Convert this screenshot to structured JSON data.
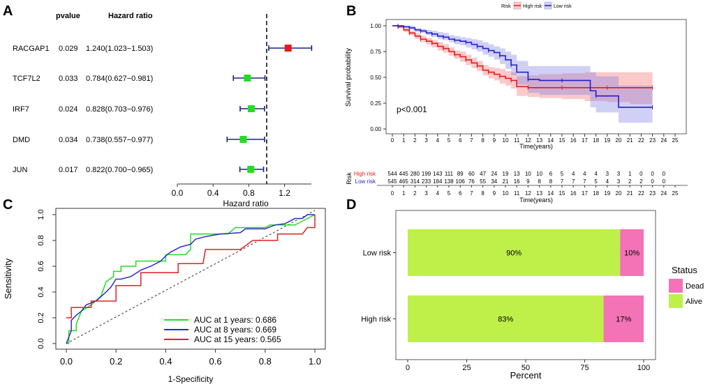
{
  "panel_labels": [
    "A",
    "B",
    "C",
    "D"
  ],
  "chart_data": [
    {
      "panel": "A",
      "type": "forest",
      "headers": {
        "pvalue": "pvalue",
        "hr": "Hazard ratio"
      },
      "xlabel": "Hazard ratio",
      "xlim": [
        0,
        1.5
      ],
      "xticks": [
        "0.0",
        "0.4",
        "0.8",
        "1.2"
      ],
      "reference_line": 1,
      "rows": [
        {
          "gene": "RACGAP1",
          "pvalue": "0.029",
          "hr_text": "1.240(1.023−1.503)",
          "hr": 1.24,
          "lo": 1.023,
          "hi": 1.503,
          "color": "#e41a1c"
        },
        {
          "gene": "TCF7L2",
          "pvalue": "0.033",
          "hr_text": "0.784(0.627−0.981)",
          "hr": 0.784,
          "lo": 0.627,
          "hi": 0.981,
          "color": "#22dd22"
        },
        {
          "gene": "IRF7",
          "pvalue": "0.024",
          "hr_text": "0.828(0.703−0.976)",
          "hr": 0.828,
          "lo": 0.703,
          "hi": 0.976,
          "color": "#22dd22"
        },
        {
          "gene": "DMD",
          "pvalue": "0.034",
          "hr_text": "0.738(0.557−0.977)",
          "hr": 0.738,
          "lo": 0.557,
          "hi": 0.977,
          "color": "#22dd22"
        },
        {
          "gene": "JUN",
          "pvalue": "0.017",
          "hr_text": "0.822(0.700−0.965)",
          "hr": 0.822,
          "lo": 0.7,
          "hi": 0.965,
          "color": "#22dd22"
        }
      ]
    },
    {
      "panel": "B",
      "type": "line",
      "subtype": "kaplan-meier",
      "legend": {
        "title": "Risk",
        "entries": [
          {
            "name": "High risk",
            "color": "#e41a1c"
          },
          {
            "name": "Low risk",
            "color": "#1f1fcc"
          }
        ]
      },
      "ylabel": "Survival probability",
      "xlabel": "Time(years)",
      "ylim": [
        0,
        1
      ],
      "yticks": [
        "0.00",
        "0.25",
        "0.50",
        "0.75",
        "1.00"
      ],
      "xlim": [
        0,
        25
      ],
      "xticks": [
        "0",
        "1",
        "2",
        "3",
        "4",
        "5",
        "6",
        "7",
        "8",
        "9",
        "10",
        "11",
        "12",
        "13",
        "14",
        "15",
        "16",
        "17",
        "18",
        "19",
        "20",
        "21",
        "22",
        "23",
        "24",
        "25"
      ],
      "annotation": "p<0.001",
      "series": [
        {
          "name": "High risk",
          "color": "#e41a1c",
          "x": [
            0,
            0.5,
            1,
            1.5,
            2,
            2.5,
            3,
            3.5,
            4,
            4.5,
            5,
            5.5,
            6,
            6.5,
            7,
            7.5,
            8,
            8.5,
            9,
            9.5,
            10,
            10.5,
            11,
            12,
            13,
            15,
            17,
            19,
            21,
            23
          ],
          "y": [
            1.0,
            0.99,
            0.96,
            0.93,
            0.9,
            0.87,
            0.85,
            0.83,
            0.8,
            0.78,
            0.75,
            0.72,
            0.7,
            0.67,
            0.64,
            0.61,
            0.57,
            0.55,
            0.53,
            0.51,
            0.49,
            0.47,
            0.41,
            0.4,
            0.4,
            0.4,
            0.4,
            0.4,
            0.4,
            0.4
          ],
          "lower": [
            1.0,
            0.98,
            0.94,
            0.91,
            0.87,
            0.84,
            0.82,
            0.79,
            0.76,
            0.74,
            0.71,
            0.68,
            0.65,
            0.62,
            0.59,
            0.56,
            0.52,
            0.49,
            0.47,
            0.44,
            0.42,
            0.39,
            0.32,
            0.31,
            0.3,
            0.29,
            0.27,
            0.26,
            0.24,
            0.23
          ],
          "upper": [
            1.0,
            1.0,
            0.98,
            0.95,
            0.93,
            0.9,
            0.88,
            0.86,
            0.84,
            0.82,
            0.79,
            0.76,
            0.75,
            0.72,
            0.69,
            0.66,
            0.62,
            0.6,
            0.59,
            0.58,
            0.56,
            0.55,
            0.51,
            0.52,
            0.53,
            0.54,
            0.55,
            0.55,
            0.55,
            0.55
          ]
        },
        {
          "name": "Low risk",
          "color": "#1f1fcc",
          "x": [
            0,
            0.5,
            1,
            1.5,
            2,
            2.5,
            3,
            3.5,
            4,
            4.5,
            5,
            5.5,
            6,
            6.5,
            7,
            7.5,
            8,
            8.5,
            9,
            9.5,
            10,
            10.5,
            11,
            12,
            13,
            15,
            17.5,
            18,
            20,
            23
          ],
          "y": [
            1.0,
            1.0,
            0.99,
            0.98,
            0.96,
            0.95,
            0.93,
            0.92,
            0.9,
            0.89,
            0.87,
            0.86,
            0.85,
            0.84,
            0.82,
            0.8,
            0.78,
            0.76,
            0.74,
            0.71,
            0.67,
            0.62,
            0.55,
            0.48,
            0.47,
            0.47,
            0.37,
            0.32,
            0.21,
            0.21
          ],
          "lower": [
            1.0,
            0.99,
            0.98,
            0.96,
            0.94,
            0.93,
            0.91,
            0.89,
            0.87,
            0.86,
            0.84,
            0.82,
            0.81,
            0.79,
            0.77,
            0.75,
            0.72,
            0.7,
            0.67,
            0.63,
            0.58,
            0.52,
            0.43,
            0.35,
            0.33,
            0.33,
            0.21,
            0.16,
            0.06,
            0.06
          ],
          "upper": [
            1.0,
            1.0,
            1.0,
            1.0,
            0.98,
            0.97,
            0.96,
            0.95,
            0.94,
            0.93,
            0.91,
            0.9,
            0.89,
            0.88,
            0.87,
            0.86,
            0.84,
            0.82,
            0.8,
            0.78,
            0.75,
            0.72,
            0.66,
            0.61,
            0.61,
            0.61,
            0.55,
            0.51,
            0.42,
            0.42
          ]
        }
      ],
      "risk_table": {
        "title": "Risk",
        "xlabel": "Time(years)",
        "rows": [
          {
            "name": "High risk",
            "color": "#e41a1c",
            "counts": [
              "544",
              "445",
              "280",
              "199",
              "143",
              "111",
              "89",
              "60",
              "47",
              "24",
              "19",
              "13",
              "10",
              "10",
              "6",
              "5",
              "4",
              "4",
              "4",
              "3",
              "3",
              "1",
              "0",
              "0",
              "0"
            ]
          },
          {
            "name": "Low risk",
            "color": "#1f1fcc",
            "counts": [
              "545",
              "465",
              "314",
              "233",
              "184",
              "138",
              "106",
              "76",
              "55",
              "34",
              "21",
              "16",
              "9",
              "8",
              "8",
              "7",
              "7",
              "7",
              "5",
              "4",
              "3",
              "2",
              "2",
              "0",
              "0"
            ]
          }
        ]
      }
    },
    {
      "panel": "C",
      "type": "line",
      "subtype": "roc",
      "xlabel": "1-Specificity",
      "ylabel": "Sensitivity",
      "xlim": [
        0,
        1
      ],
      "ylim": [
        0,
        1
      ],
      "xticks": [
        "0.0",
        "0.2",
        "0.4",
        "0.6",
        "0.8",
        "1.0"
      ],
      "yticks": [
        "0.0",
        "0.2",
        "0.4",
        "0.6",
        "0.8",
        "1.0"
      ],
      "series": [
        {
          "name": "AUC at 1 years: 0.686",
          "color": "#22dd22",
          "points": [
            [
              0,
              0
            ],
            [
              0.01,
              0
            ],
            [
              0.01,
              0.1
            ],
            [
              0.04,
              0.1
            ],
            [
              0.04,
              0.15
            ],
            [
              0.06,
              0.25
            ],
            [
              0.1,
              0.3
            ],
            [
              0.14,
              0.37
            ],
            [
              0.16,
              0.48
            ],
            [
              0.19,
              0.52
            ],
            [
              0.19,
              0.56
            ],
            [
              0.22,
              0.56
            ],
            [
              0.22,
              0.6
            ],
            [
              0.28,
              0.6
            ],
            [
              0.28,
              0.64
            ],
            [
              0.4,
              0.64
            ],
            [
              0.4,
              0.69
            ],
            [
              0.48,
              0.69
            ],
            [
              0.5,
              0.73
            ],
            [
              0.5,
              0.85
            ],
            [
              0.65,
              0.85
            ],
            [
              0.68,
              0.9
            ],
            [
              0.8,
              0.9
            ],
            [
              0.82,
              0.92
            ],
            [
              0.92,
              0.92
            ],
            [
              0.95,
              0.95
            ],
            [
              1,
              1
            ]
          ]
        },
        {
          "name": "AUC at 8 years: 0.669",
          "color": "#2a2acc",
          "points": [
            [
              0,
              0
            ],
            [
              0.02,
              0.1
            ],
            [
              0.02,
              0.18
            ],
            [
              0.04,
              0.22
            ],
            [
              0.06,
              0.25
            ],
            [
              0.08,
              0.3
            ],
            [
              0.12,
              0.33
            ],
            [
              0.16,
              0.4
            ],
            [
              0.18,
              0.44
            ],
            [
              0.2,
              0.5
            ],
            [
              0.22,
              0.5
            ],
            [
              0.26,
              0.52
            ],
            [
              0.3,
              0.57
            ],
            [
              0.34,
              0.6
            ],
            [
              0.38,
              0.64
            ],
            [
              0.4,
              0.68
            ],
            [
              0.42,
              0.71
            ],
            [
              0.44,
              0.73
            ],
            [
              0.46,
              0.75
            ],
            [
              0.5,
              0.77
            ],
            [
              0.52,
              0.81
            ],
            [
              0.56,
              0.83
            ],
            [
              0.62,
              0.85
            ],
            [
              0.7,
              0.86
            ],
            [
              0.72,
              0.89
            ],
            [
              0.8,
              0.89
            ],
            [
              0.84,
              0.92
            ],
            [
              0.88,
              0.93
            ],
            [
              0.92,
              0.97
            ],
            [
              0.95,
              0.97
            ],
            [
              0.97,
              1
            ],
            [
              1,
              1
            ]
          ]
        },
        {
          "name": "AUC at 15 years: 0.565",
          "color": "#dd2222",
          "points": [
            [
              0,
              0.2
            ],
            [
              0.02,
              0.2
            ],
            [
              0.02,
              0.28
            ],
            [
              0.1,
              0.28
            ],
            [
              0.1,
              0.33
            ],
            [
              0.2,
              0.33
            ],
            [
              0.2,
              0.45
            ],
            [
              0.3,
              0.45
            ],
            [
              0.3,
              0.55
            ],
            [
              0.45,
              0.55
            ],
            [
              0.45,
              0.62
            ],
            [
              0.55,
              0.62
            ],
            [
              0.56,
              0.73
            ],
            [
              0.7,
              0.73
            ],
            [
              0.75,
              0.8
            ],
            [
              0.85,
              0.8
            ],
            [
              0.85,
              0.85
            ],
            [
              0.95,
              0.85
            ],
            [
              0.97,
              0.9
            ],
            [
              1,
              0.9
            ],
            [
              1,
              1
            ]
          ]
        }
      ]
    },
    {
      "panel": "D",
      "type": "bar",
      "subtype": "stacked-horizontal",
      "xlabel": "Percent",
      "xlim": [
        0,
        100
      ],
      "xticks": [
        "0",
        "25",
        "50",
        "75",
        "100"
      ],
      "categories": [
        "Low risk",
        "High risk"
      ],
      "series": [
        {
          "name": "Alive",
          "color": "#bff04a",
          "values": [
            90,
            83
          ],
          "labels": [
            "90%",
            "83%"
          ]
        },
        {
          "name": "Dead",
          "color": "#f472b6",
          "values": [
            10,
            17
          ],
          "labels": [
            "10%",
            "17%"
          ]
        }
      ],
      "legend": {
        "title": "Status",
        "entries": [
          "Dead",
          "Alive"
        ]
      }
    }
  ]
}
